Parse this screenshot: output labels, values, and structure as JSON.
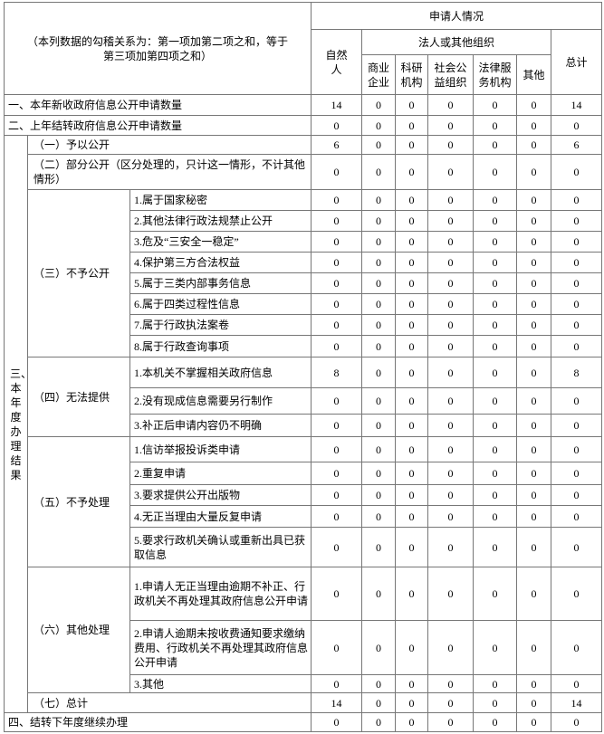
{
  "header": {
    "note": "（本列数据的勾稽关系为：第一项加第二项之和，等于第三项加第四项之和）",
    "applicant": "申请人情况",
    "natural": "自然人",
    "legal": "法人或其他组织",
    "sub": [
      "商业企业",
      "科研机构",
      "社会公益组织",
      "法律服务机构",
      "其他"
    ],
    "total": "总计"
  },
  "rows": [
    {
      "label": "一、本年新收政府信息公开申请数量",
      "values": [
        14,
        0,
        0,
        0,
        0,
        0,
        14
      ]
    },
    {
      "label": "二、上年结转政府信息公开申请数量",
      "values": [
        0,
        0,
        0,
        0,
        0,
        0,
        0
      ]
    }
  ],
  "result": {
    "label": "三、本年度办理结果",
    "groups": [
      {
        "label": "（一）予以公开",
        "values": [
          6,
          0,
          0,
          0,
          0,
          0,
          6
        ]
      },
      {
        "label": "（二）部分公开（区分处理的，只计这一情形，不计其他情形）",
        "values": [
          0,
          0,
          0,
          0,
          0,
          0,
          0
        ]
      },
      {
        "label": "（三）不予公开",
        "items": [
          {
            "label": "1.属于国家秘密",
            "values": [
              0,
              0,
              0,
              0,
              0,
              0,
              0
            ]
          },
          {
            "label": "2.其他法律行政法规禁止公开",
            "values": [
              0,
              0,
              0,
              0,
              0,
              0,
              0
            ]
          },
          {
            "label": "3.危及“三安全一稳定”",
            "values": [
              0,
              0,
              0,
              0,
              0,
              0,
              0
            ]
          },
          {
            "label": "4.保护第三方合法权益",
            "values": [
              0,
              0,
              0,
              0,
              0,
              0,
              0
            ]
          },
          {
            "label": "5.属于三类内部事务信息",
            "values": [
              0,
              0,
              0,
              0,
              0,
              0,
              0
            ]
          },
          {
            "label": "6.属于四类过程性信息",
            "values": [
              0,
              0,
              0,
              0,
              0,
              0,
              0
            ]
          },
          {
            "label": "7.属于行政执法案卷",
            "values": [
              0,
              0,
              0,
              0,
              0,
              0,
              0
            ]
          },
          {
            "label": "8.属于行政查询事项",
            "values": [
              0,
              0,
              0,
              0,
              0,
              0,
              0
            ]
          }
        ]
      },
      {
        "label": "（四）无法提供",
        "items": [
          {
            "label": "1.本机关不掌握相关政府信息",
            "values": [
              8,
              0,
              0,
              0,
              0,
              0,
              8
            ]
          },
          {
            "label": "2.没有现成信息需要另行制作",
            "values": [
              0,
              0,
              0,
              0,
              0,
              0,
              0
            ]
          },
          {
            "label": "3.补正后申请内容仍不明确",
            "values": [
              0,
              0,
              0,
              0,
              0,
              0,
              0
            ]
          }
        ]
      },
      {
        "label": "（五）不予处理",
        "items": [
          {
            "label": "1.信访举报投诉类申请",
            "values": [
              0,
              0,
              0,
              0,
              0,
              0,
              0
            ]
          },
          {
            "label": "2.重复申请",
            "values": [
              0,
              0,
              0,
              0,
              0,
              0,
              0
            ]
          },
          {
            "label": "3.要求提供公开出版物",
            "values": [
              0,
              0,
              0,
              0,
              0,
              0,
              0
            ]
          },
          {
            "label": "4.无正当理由大量反复申请",
            "values": [
              0,
              0,
              0,
              0,
              0,
              0,
              0
            ]
          },
          {
            "label": "5.要求行政机关确认或重新出具已获取信息",
            "values": [
              0,
              0,
              0,
              0,
              0,
              0,
              0
            ]
          }
        ]
      },
      {
        "label": "（六）其他处理",
        "items": [
          {
            "label": "1.申请人无正当理由逾期不补正、行政机关不再处理其政府信息公开申请",
            "values": [
              0,
              0,
              0,
              0,
              0,
              0,
              0
            ]
          },
          {
            "label": "2.申请人逾期未按收费通知要求缴纳费用、行政机关不再处理其政府信息公开申请",
            "values": [
              0,
              0,
              0,
              0,
              0,
              0,
              0
            ]
          },
          {
            "label": "3.其他",
            "values": [
              0,
              0,
              0,
              0,
              0,
              0,
              0
            ]
          }
        ]
      },
      {
        "label": "（七）总计",
        "values": [
          14,
          0,
          0,
          0,
          0,
          0,
          14
        ]
      }
    ]
  },
  "tail": {
    "label": "四、结转下年度继续办理",
    "values": [
      0,
      0,
      0,
      0,
      0,
      0,
      0
    ]
  }
}
